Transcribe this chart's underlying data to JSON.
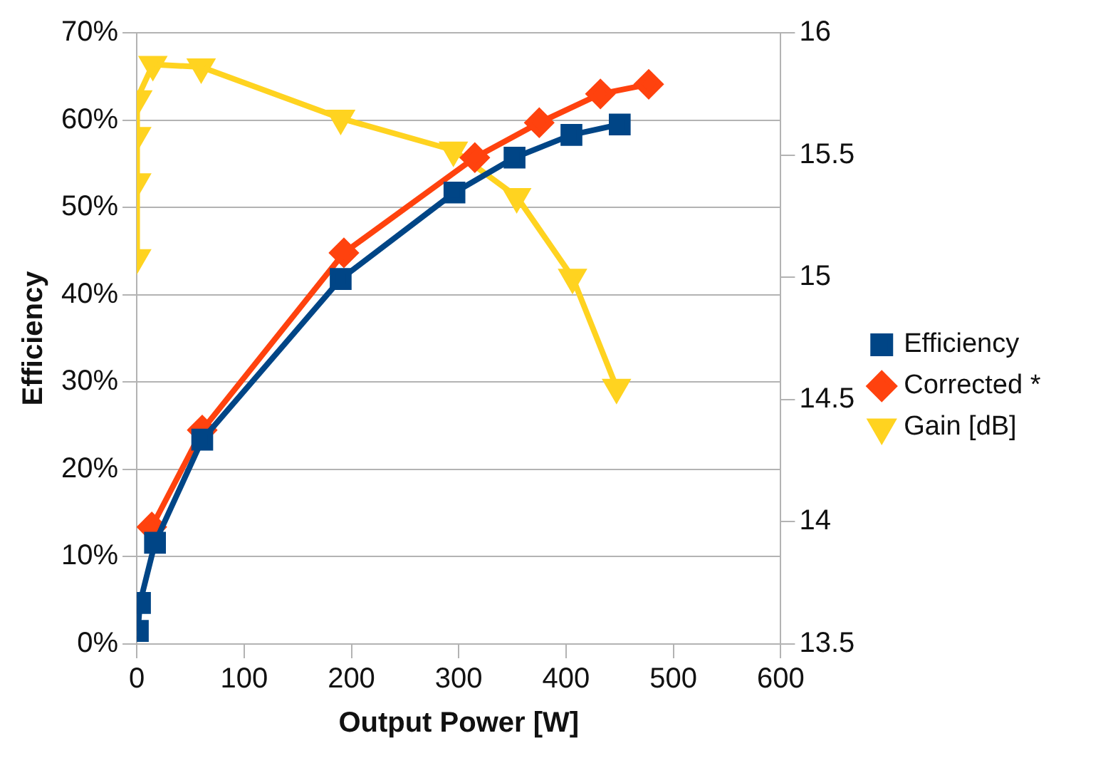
{
  "chart_data": {
    "type": "line",
    "xlabel": "Output Power [W]",
    "ylabel": "Efficiency",
    "xlim": [
      0,
      600
    ],
    "xticks": [
      0,
      100,
      200,
      300,
      400,
      500,
      600
    ],
    "ylim": [
      0,
      70
    ],
    "yticks": [
      {
        "value": 0,
        "label": "0%"
      },
      {
        "value": 10,
        "label": "10%"
      },
      {
        "value": 20,
        "label": "20%"
      },
      {
        "value": 30,
        "label": "30%"
      },
      {
        "value": 40,
        "label": "40%"
      },
      {
        "value": 50,
        "label": "50%"
      },
      {
        "value": 60,
        "label": "60%"
      },
      {
        "value": 70,
        "label": "70%"
      }
    ],
    "y2lim": [
      13.5,
      16
    ],
    "y2ticks": [
      13.5,
      14,
      14.5,
      15,
      15.5,
      16
    ],
    "grid": "y",
    "legend": "right",
    "line_style": "solid",
    "series": [
      {
        "name": "Efficiency",
        "color": "#004586",
        "marker": "square",
        "x": [
          1,
          3,
          17,
          61,
          190,
          296,
          352,
          405,
          450
        ],
        "values": [
          1.5,
          4.7,
          11.6,
          23.4,
          41.8,
          51.7,
          55.7,
          58.3,
          59.5
        ]
      },
      {
        "name": "Corrected *",
        "color": "#ff420e",
        "marker": "diamond",
        "x": [
          14,
          61,
          193,
          315,
          375,
          432,
          477
        ],
        "values": [
          13.4,
          24.5,
          44.8,
          55.7,
          59.7,
          63.0,
          64.1
        ]
      },
      {
        "name": "Gain [dB]",
        "color": "#ffd320",
        "marker": "triangle",
        "axis": "y2",
        "x": [
          0,
          0,
          0,
          1,
          15,
          60,
          190,
          295,
          354,
          406,
          447
        ],
        "values": [
          15.08,
          15.39,
          15.58,
          15.73,
          15.87,
          15.86,
          15.65,
          15.52,
          15.33,
          15.0,
          14.55
        ]
      }
    ]
  }
}
